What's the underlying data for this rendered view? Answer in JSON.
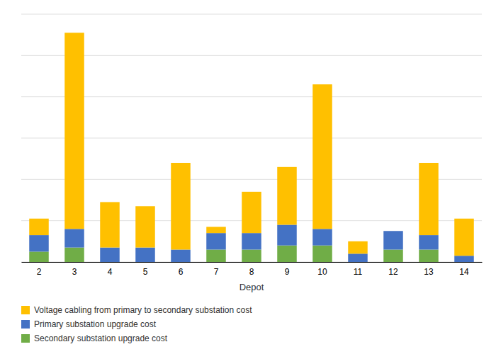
{
  "chart_data": {
    "type": "bar",
    "stacked": true,
    "xlabel": "Depot",
    "categories": [
      "2",
      "3",
      "4",
      "5",
      "6",
      "7",
      "8",
      "9",
      "10",
      "11",
      "12",
      "13",
      "14"
    ],
    "series": [
      {
        "name": "Secondary substation upgrade cost",
        "color": "#70AD47",
        "values": [
          0.5,
          0.7,
          0.0,
          0.0,
          0.0,
          0.6,
          0.6,
          0.8,
          0.8,
          0.0,
          0.6,
          0.6,
          0.0
        ]
      },
      {
        "name": "Primary substation upgrade cost",
        "color": "#4472C4",
        "values": [
          0.8,
          0.9,
          0.7,
          0.7,
          0.6,
          0.8,
          0.8,
          1.0,
          0.8,
          0.4,
          0.9,
          0.7,
          0.3
        ]
      },
      {
        "name": "Voltage cabling from primary to secondary substation cost",
        "color": "#FFC000",
        "values": [
          0.8,
          9.5,
          2.2,
          2.0,
          4.2,
          0.3,
          2.0,
          2.8,
          7.0,
          0.6,
          0.0,
          3.5,
          1.8
        ]
      }
    ],
    "ylim": [
      0,
      12
    ],
    "yticks": [
      0,
      2,
      4,
      6,
      8,
      10,
      12
    ],
    "grid": true,
    "tick_labels": "x",
    "legend": "lower left"
  }
}
